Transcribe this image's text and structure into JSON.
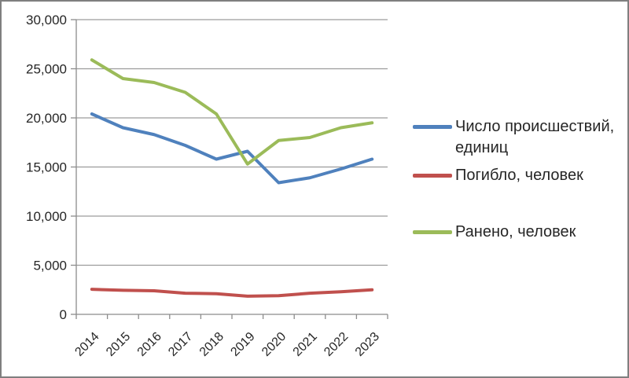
{
  "chart_data": {
    "type": "line",
    "categories": [
      "2014",
      "2015",
      "2016",
      "2017",
      "2018",
      "2019",
      "2020",
      "2021",
      "2022",
      "2023"
    ],
    "series": [
      {
        "name": "Число происшествий, единиц",
        "color": "#4f81bd",
        "values": [
          20400,
          19000,
          18300,
          17200,
          15800,
          16600,
          13400,
          13900,
          14800,
          15800
        ]
      },
      {
        "name": "Погибло, человек",
        "color": "#c0504d",
        "values": [
          2550,
          2450,
          2400,
          2150,
          2100,
          1850,
          1900,
          2150,
          2300,
          2500
        ]
      },
      {
        "name": "Ранено, человек",
        "color": "#9bbb59",
        "values": [
          25900,
          24000,
          23600,
          22600,
          20400,
          15300,
          17700,
          18000,
          19000,
          19500
        ]
      }
    ],
    "title": "",
    "xlabel": "",
    "ylabel": "",
    "ylim": [
      0,
      30000
    ],
    "ytick_step": 5000,
    "ytick_labels": [
      "0",
      "5,000",
      "10,000",
      "15,000",
      "20,000",
      "25,000",
      "30,000"
    ],
    "grid": true,
    "legend_position": "right",
    "x_label_rotation_deg": -45
  },
  "colors": {
    "background": "#ffffff",
    "border": "#7f7f7f",
    "gridline": "#9c9c9c",
    "axis": "#8c8c8c",
    "text": "#262626"
  }
}
